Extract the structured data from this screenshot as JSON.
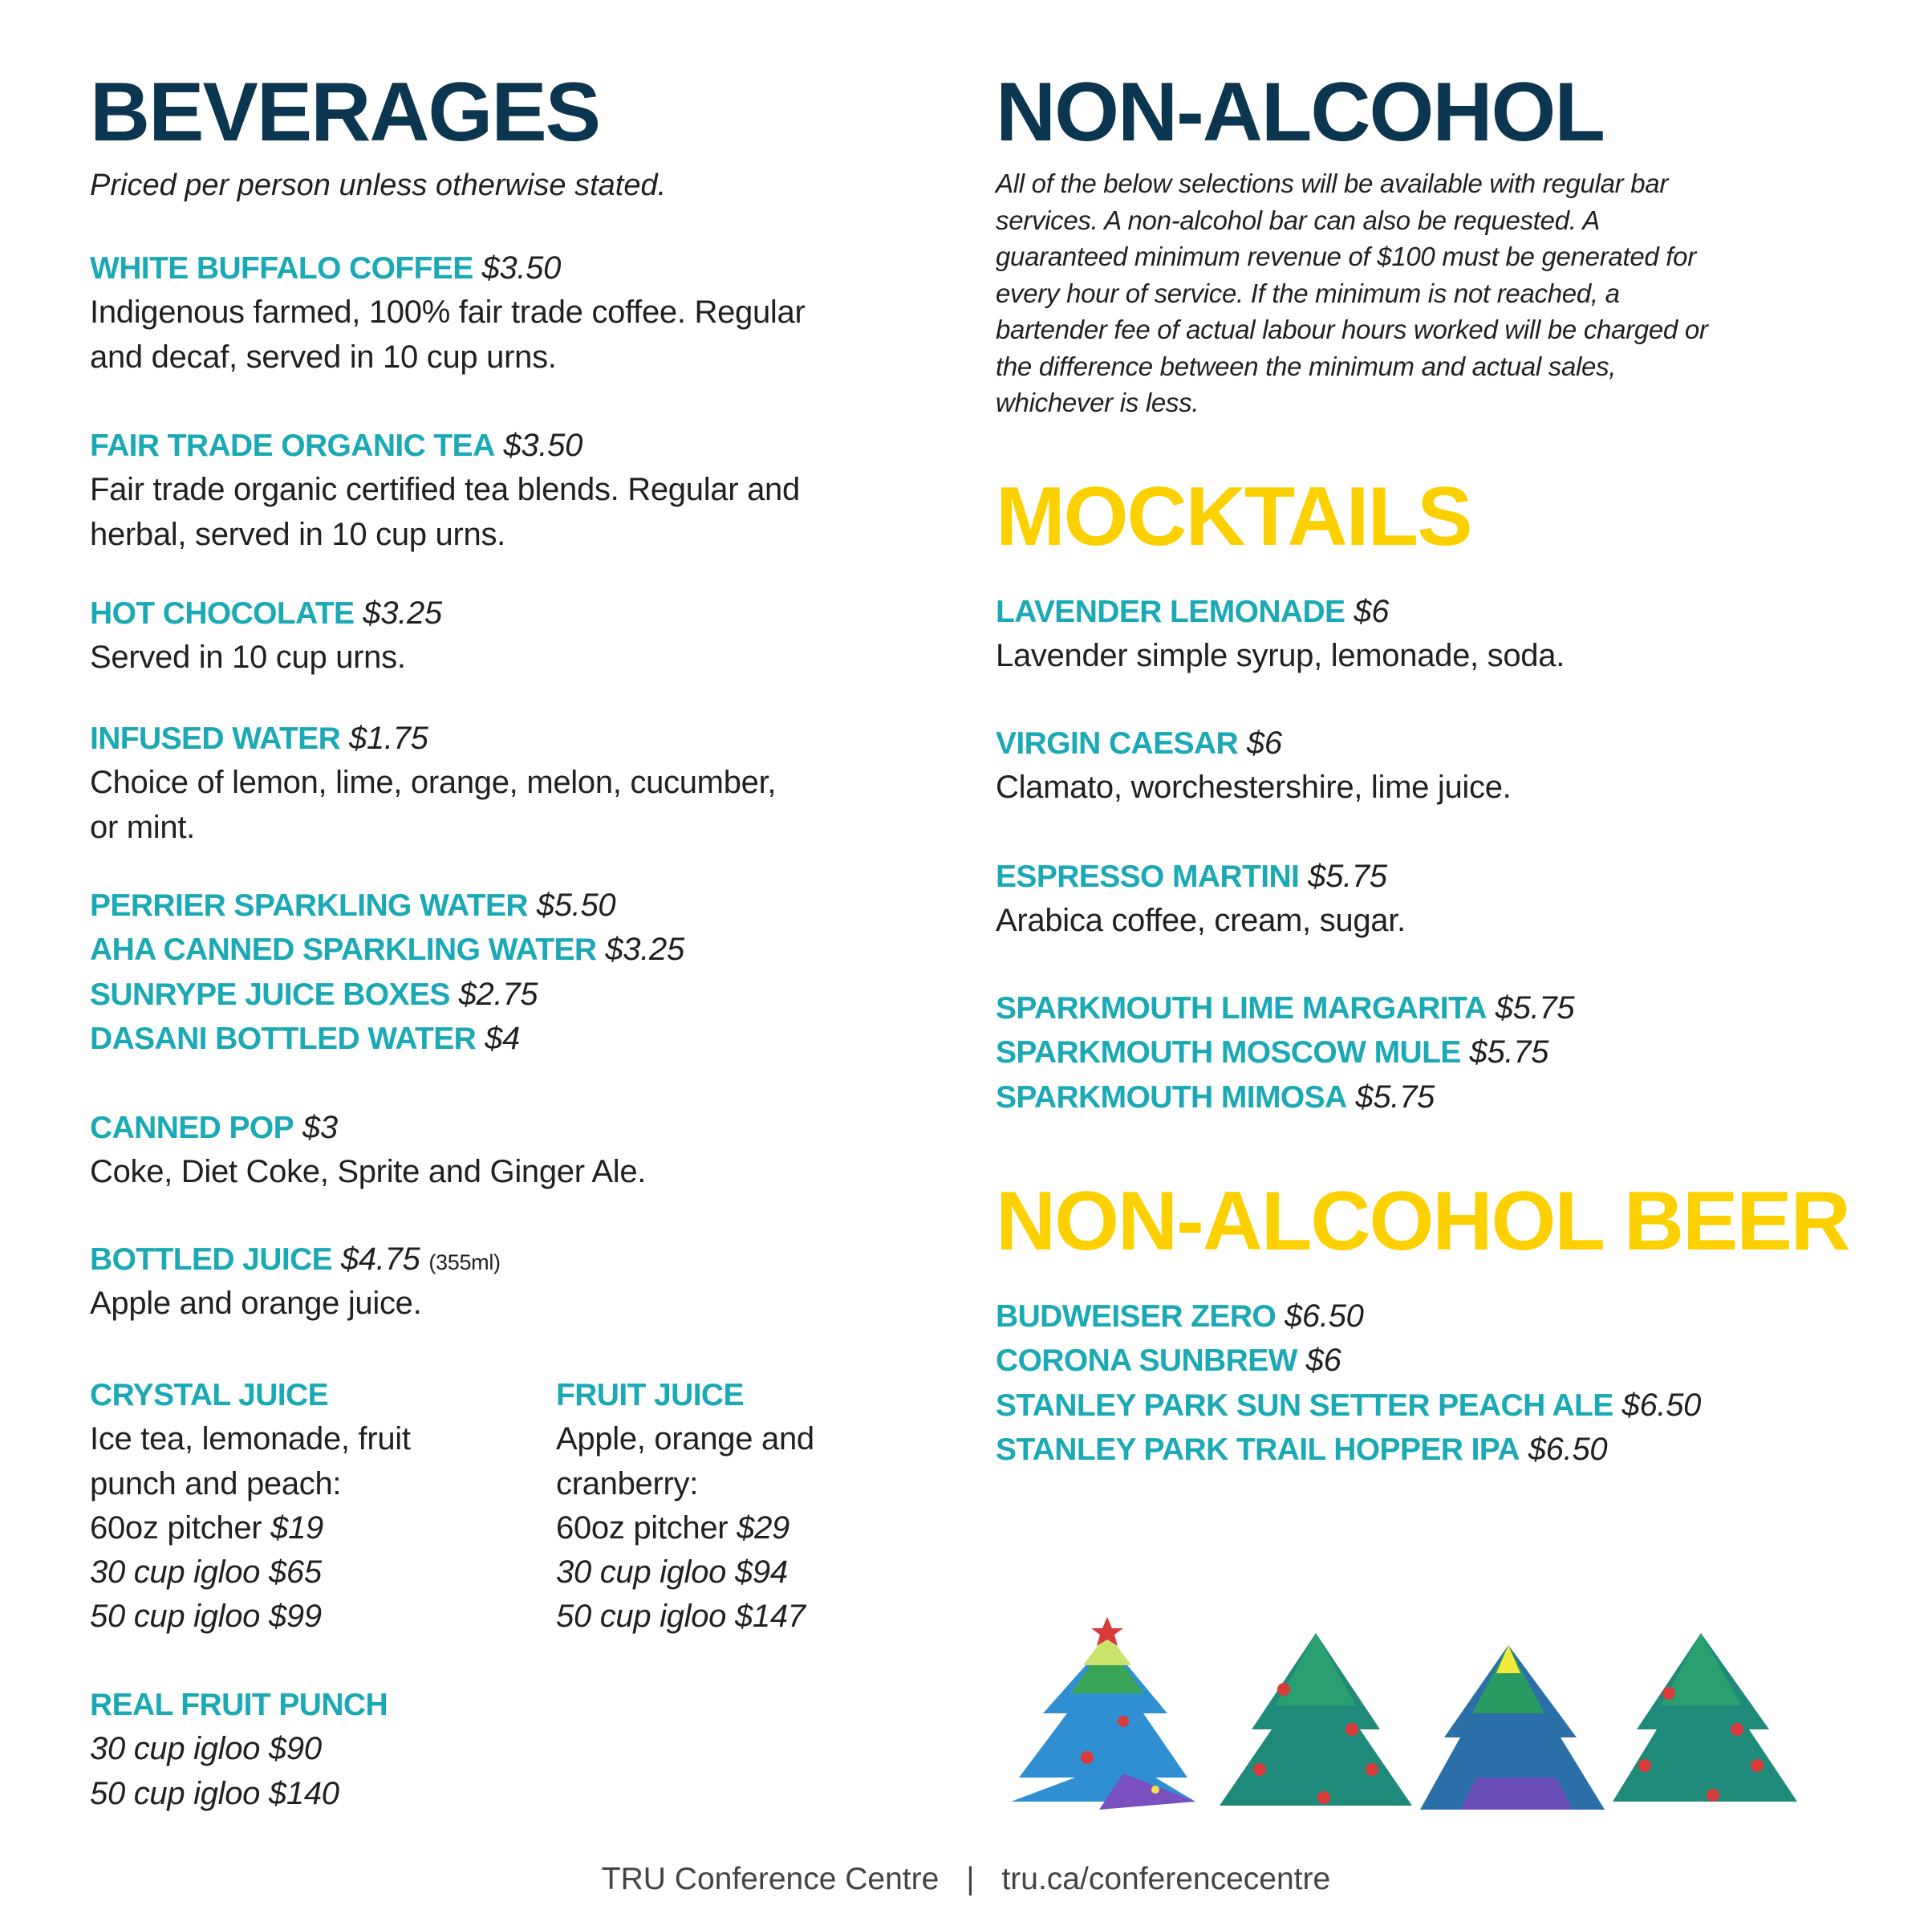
{
  "beverages": {
    "title": "BEVERAGES",
    "subtitle": "Priced per person unless otherwise stated.",
    "items": [
      {
        "name": "WHITE BUFFALO COFFEE",
        "price": "$3.50",
        "desc": [
          "Indigenous farmed, 100% fair trade coffee. Regular",
          "and decaf, served in 10 cup urns."
        ]
      },
      {
        "name": "FAIR TRADE ORGANIC TEA",
        "price": "$3.50",
        "desc": [
          "Fair trade organic certified tea blends. Regular and",
          "herbal, served in 10 cup urns."
        ]
      },
      {
        "name": "HOT CHOCOLATE",
        "price": "$3.25",
        "desc": [
          "Served in 10 cup urns."
        ]
      },
      {
        "name": "INFUSED WATER",
        "price": "$1.75",
        "desc": [
          "Choice of lemon, lime, orange, melon, cucumber,",
          "or mint."
        ]
      }
    ],
    "water_list": [
      {
        "name": "PERRIER SPARKLING WATER",
        "price": "$5.50"
      },
      {
        "name": "AHA CANNED SPARKLING WATER",
        "price": "$3.25"
      },
      {
        "name": "SUNRYPE JUICE BOXES",
        "price": "$2.75"
      },
      {
        "name": "DASANI BOTTLED WATER",
        "price": "$4"
      }
    ],
    "canned_pop": {
      "name": "CANNED POP",
      "price": "$3",
      "desc": [
        "Coke, Diet Coke, Sprite and Ginger Ale."
      ]
    },
    "bottled_juice": {
      "name": "BOTTLED JUICE",
      "price": "$4.75",
      "note": "(355ml)",
      "desc": [
        "Apple and orange juice."
      ]
    },
    "crystal_juice": {
      "name": "CRYSTAL JUICE",
      "desc": [
        "Ice tea, lemonade, fruit",
        "punch and peach:"
      ],
      "sizes": [
        {
          "label": "60oz pitcher",
          "price": "$19"
        },
        {
          "label": "30 cup igloo",
          "price": "$65"
        },
        {
          "label": "50 cup igloo",
          "price": "$99"
        }
      ]
    },
    "fruit_juice": {
      "name": "FRUIT JUICE",
      "desc": [
        "Apple, orange and",
        "cranberry:"
      ],
      "sizes": [
        {
          "label": "60oz pitcher",
          "price": "$29"
        },
        {
          "label": "30 cup igloo",
          "price": "$94"
        },
        {
          "label": "50 cup igloo",
          "price": "$147"
        }
      ]
    },
    "real_fruit_punch": {
      "name": "REAL FRUIT PUNCH",
      "sizes": [
        "30 cup igloo $90",
        "50 cup igloo $140"
      ]
    }
  },
  "non_alcohol": {
    "title": "NON-ALCOHOL",
    "paragraph": [
      "All of the below selections will be available with regular bar",
      "services. A non-alcohol bar can also be requested. A",
      "guaranteed minimum revenue of $100 must be generated for",
      "every hour of service. If the minimum is not reached, a",
      "bartender fee of actual labour hours worked will be charged or",
      "the difference between the minimum and actual sales,",
      "whichever is less."
    ]
  },
  "mocktails": {
    "title": "MOCKTAILS",
    "items": [
      {
        "name": "LAVENDER LEMONADE",
        "price": "$6",
        "desc": [
          "Lavender simple syrup, lemonade, soda."
        ]
      },
      {
        "name": "VIRGIN CAESAR",
        "price": "$6",
        "desc": [
          "Clamato, worchestershire, lime juice."
        ]
      },
      {
        "name": "ESPRESSO MARTINI",
        "price": "$5.75",
        "desc": [
          "Arabica coffee, cream, sugar."
        ]
      }
    ],
    "sparkmouth": [
      {
        "name": "SPARKMOUTH LIME MARGARITA",
        "price": "$5.75"
      },
      {
        "name": "SPARKMOUTH MOSCOW MULE",
        "price": "$5.75"
      },
      {
        "name": "SPARKMOUTH MIMOSA",
        "price": "$5.75"
      }
    ]
  },
  "beer": {
    "title": "NON-ALCOHOL BEER",
    "items": [
      {
        "name": "BUDWEISER ZERO",
        "price": "$6.50"
      },
      {
        "name": "CORONA SUNBREW",
        "price": "$6"
      },
      {
        "name": "STANLEY PARK SUN SETTER PEACH ALE",
        "price": "$6.50"
      },
      {
        "name": "STANLEY PARK TRAIL HOPPER IPA",
        "price": "$6.50"
      }
    ]
  },
  "footer": {
    "org": "TRU Conference Centre",
    "separator": "|",
    "url": "tru.ca/conferencecentre"
  },
  "decoration": {
    "icons": [
      "christmas-tree-icon",
      "christmas-tree-icon",
      "christmas-tree-icon",
      "christmas-tree-icon"
    ]
  },
  "colors": {
    "heading_navy": "#0c3550",
    "item_teal": "#1aa9b5",
    "heading_yellow": "#fdd000",
    "text": "#231f20"
  }
}
